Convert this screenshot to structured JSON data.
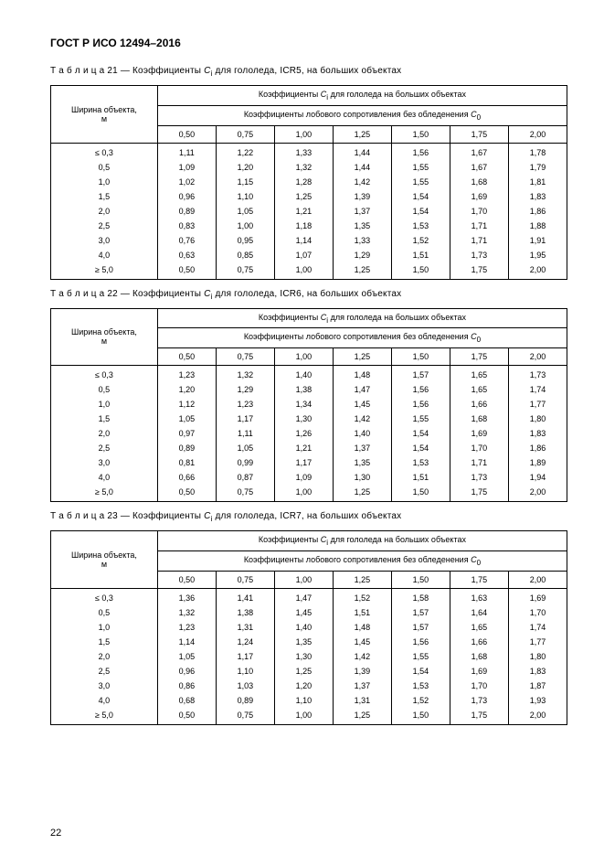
{
  "header": "ГОСТ Р ИСО 12494–2016",
  "page_number": "22",
  "row_header_label": "Ширина объекта,\nм",
  "main_header_prefix": "Коэффициенты ",
  "main_header_var": "C",
  "main_header_sub": "i",
  "main_header_suffix": " для гололеда на больших объектах",
  "sub_header_prefix": "Коэффициенты лобового сопротивления без обледенения ",
  "sub_header_var": "C",
  "sub_header_sub": "0",
  "col_labels": [
    "0,50",
    "0,75",
    "1,00",
    "1,25",
    "1,50",
    "1,75",
    "2,00"
  ],
  "row_labels": [
    "≤ 0,3",
    "0,5",
    "1,0",
    "1,5",
    "2,0",
    "2,5",
    "3,0",
    "4,0",
    "≥ 5,0"
  ],
  "tables": [
    {
      "caption_prefix": "Т а б л и ц а 21 — Коэффициенты ",
      "caption_var": "C",
      "caption_sub": "i",
      "caption_suffix": " для гололеда, ICR5, на больших объектах",
      "rows": [
        [
          "1,11",
          "1,22",
          "1,33",
          "1,44",
          "1,56",
          "1,67",
          "1,78"
        ],
        [
          "1,09",
          "1,20",
          "1,32",
          "1,44",
          "1,55",
          "1,67",
          "1,79"
        ],
        [
          "1,02",
          "1,15",
          "1,28",
          "1,42",
          "1,55",
          "1,68",
          "1,81"
        ],
        [
          "0,96",
          "1,10",
          "1,25",
          "1,39",
          "1,54",
          "1,69",
          "1,83"
        ],
        [
          "0,89",
          "1,05",
          "1,21",
          "1,37",
          "1,54",
          "1,70",
          "1,86"
        ],
        [
          "0,83",
          "1,00",
          "1,18",
          "1,35",
          "1,53",
          "1,71",
          "1,88"
        ],
        [
          "0,76",
          "0,95",
          "1,14",
          "1,33",
          "1,52",
          "1,71",
          "1,91"
        ],
        [
          "0,63",
          "0,85",
          "1,07",
          "1,29",
          "1,51",
          "1,73",
          "1,95"
        ],
        [
          "0,50",
          "0,75",
          "1,00",
          "1,25",
          "1,50",
          "1,75",
          "2,00"
        ]
      ]
    },
    {
      "caption_prefix": "Т а б л и ц а 22 — Коэффициенты ",
      "caption_var": "C",
      "caption_sub": "i",
      "caption_suffix": " для гололеда, ICR6, на больших объектах",
      "rows": [
        [
          "1,23",
          "1,32",
          "1,40",
          "1,48",
          "1,57",
          "1,65",
          "1,73"
        ],
        [
          "1,20",
          "1,29",
          "1,38",
          "1,47",
          "1,56",
          "1,65",
          "1,74"
        ],
        [
          "1,12",
          "1,23",
          "1,34",
          "1,45",
          "1,56",
          "1,66",
          "1,77"
        ],
        [
          "1,05",
          "1,17",
          "1,30",
          "1,42",
          "1,55",
          "1,68",
          "1,80"
        ],
        [
          "0,97",
          "1,11",
          "1,26",
          "1,40",
          "1,54",
          "1,69",
          "1,83"
        ],
        [
          "0,89",
          "1,05",
          "1,21",
          "1,37",
          "1,54",
          "1,70",
          "1,86"
        ],
        [
          "0,81",
          "0,99",
          "1,17",
          "1,35",
          "1,53",
          "1,71",
          "1,89"
        ],
        [
          "0,66",
          "0,87",
          "1,09",
          "1,30",
          "1,51",
          "1,73",
          "1,94"
        ],
        [
          "0,50",
          "0,75",
          "1,00",
          "1,25",
          "1,50",
          "1,75",
          "2,00"
        ]
      ]
    },
    {
      "caption_prefix": "Т а б л и ц а 23 — Коэффициенты ",
      "caption_var": "C",
      "caption_sub": "i",
      "caption_suffix": " для гололеда, ICR7, на больших объектах",
      "rows": [
        [
          "1,36",
          "1,41",
          "1,47",
          "1,52",
          "1,58",
          "1,63",
          "1,69"
        ],
        [
          "1,32",
          "1,38",
          "1,45",
          "1,51",
          "1,57",
          "1,64",
          "1,70"
        ],
        [
          "1,23",
          "1,31",
          "1,40",
          "1,48",
          "1,57",
          "1,65",
          "1,74"
        ],
        [
          "1,14",
          "1,24",
          "1,35",
          "1,45",
          "1,56",
          "1,66",
          "1,77"
        ],
        [
          "1,05",
          "1,17",
          "1,30",
          "1,42",
          "1,55",
          "1,68",
          "1,80"
        ],
        [
          "0,96",
          "1,10",
          "1,25",
          "1,39",
          "1,54",
          "1,69",
          "1,83"
        ],
        [
          "0,86",
          "1,03",
          "1,20",
          "1,37",
          "1,53",
          "1,70",
          "1,87"
        ],
        [
          "0,68",
          "0,89",
          "1,10",
          "1,31",
          "1,52",
          "1,73",
          "1,93"
        ],
        [
          "0,50",
          "0,75",
          "1,00",
          "1,25",
          "1,50",
          "1,75",
          "2,00"
        ]
      ]
    }
  ]
}
